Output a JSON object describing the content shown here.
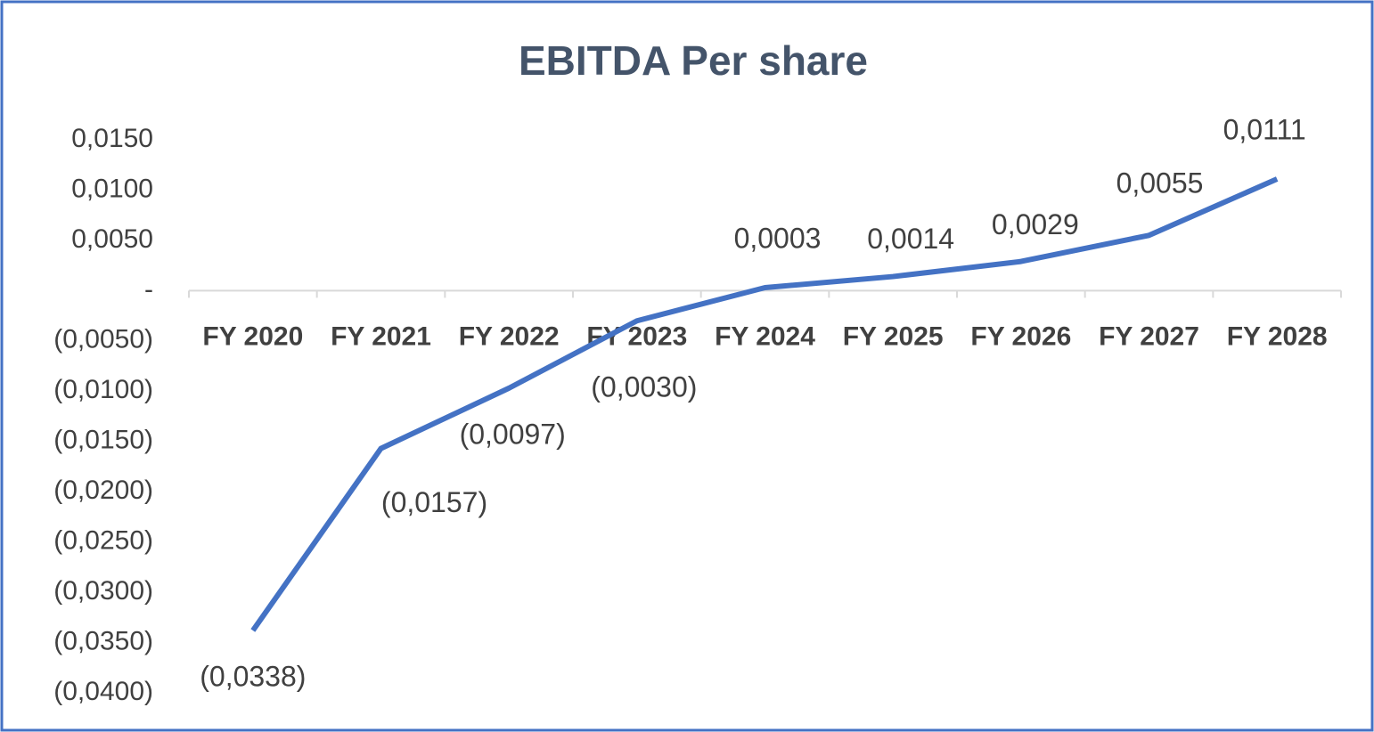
{
  "chart_data": {
    "type": "line",
    "title": "EBITDA Per share",
    "categories": [
      "FY 2020",
      "FY 2021",
      "FY 2022",
      "FY 2023",
      "FY 2024",
      "FY 2025",
      "FY 2026",
      "FY 2027",
      "FY 2028"
    ],
    "values": [
      -0.0338,
      -0.0157,
      -0.0097,
      -0.003,
      0.0003,
      0.0014,
      0.0029,
      0.0055,
      0.0111
    ],
    "value_labels": [
      "(0,0338)",
      "(0,0157)",
      "(0,0097)",
      "(0,0030)",
      "0,0003",
      "0,0014",
      "0,0029",
      "0,0055",
      "0,0111"
    ],
    "color": "#4472c4",
    "ylim": [
      -0.04,
      0.015
    ],
    "yticks": [
      {
        "value": 0.015,
        "label": "0,0150"
      },
      {
        "value": 0.01,
        "label": "0,0100"
      },
      {
        "value": 0.005,
        "label": "0,0050"
      },
      {
        "value": 0,
        "label": "-"
      },
      {
        "value": -0.005,
        "label": "(0,0050)"
      },
      {
        "value": -0.01,
        "label": "(0,0100)"
      },
      {
        "value": -0.015,
        "label": "(0,0150)"
      },
      {
        "value": -0.02,
        "label": "(0,0200)"
      },
      {
        "value": -0.025,
        "label": "(0,0250)"
      },
      {
        "value": -0.03,
        "label": "(0,0300)"
      },
      {
        "value": -0.035,
        "label": "(0,0350)"
      },
      {
        "value": -0.04,
        "label": "(0,0400)"
      }
    ],
    "grid": false
  }
}
